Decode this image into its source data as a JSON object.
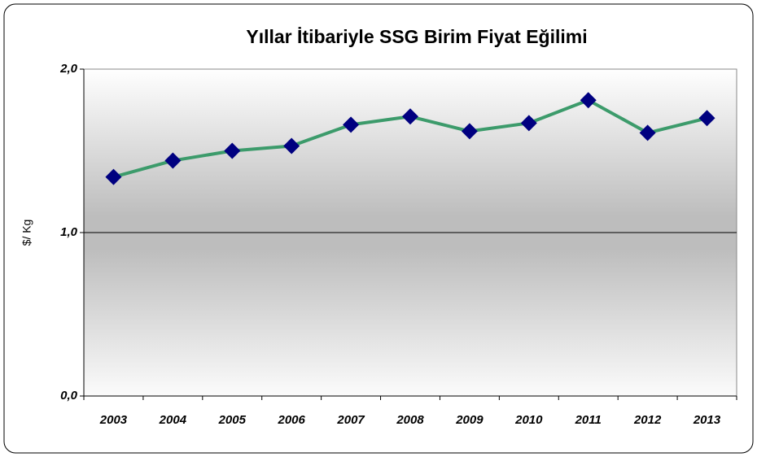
{
  "chart_data": {
    "type": "line",
    "title": "Yıllar İtibariyle SSG Birim Fiyat Eğilimi",
    "y_label": "$/ Kg",
    "categories": [
      "2003",
      "2004",
      "2005",
      "2006",
      "2007",
      "2008",
      "2009",
      "2010",
      "2011",
      "2012",
      "2013"
    ],
    "series": [
      {
        "name": "SSG",
        "color": "#3c9b6b",
        "marker_color": "#000080",
        "values": [
          1.34,
          1.44,
          1.5,
          1.53,
          1.66,
          1.71,
          1.62,
          1.67,
          1.81,
          1.61,
          1.7
        ]
      }
    ],
    "ylim": [
      0,
      2
    ],
    "yticks": [
      {
        "value": 0,
        "label": "0,0"
      },
      {
        "value": 1,
        "label": "1,0"
      },
      {
        "value": 2,
        "label": "2,0"
      }
    ],
    "grid": true
  }
}
